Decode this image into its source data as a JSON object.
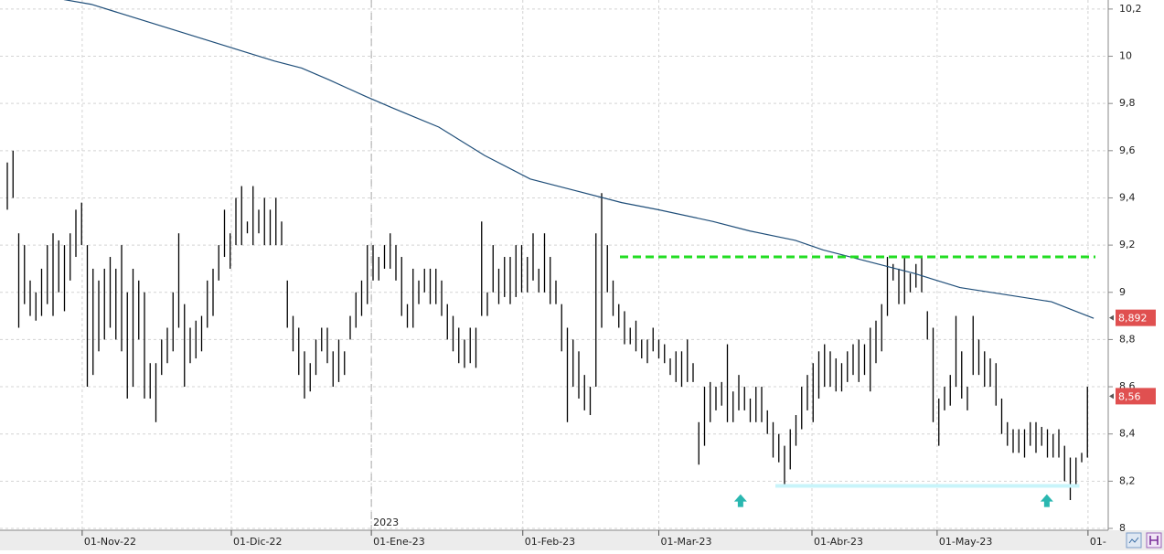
{
  "chart_data": {
    "type": "ohlc",
    "color": "#000000",
    "high": [
      9.55,
      9.6,
      9.25,
      9.2,
      9.05,
      9.0,
      9.1,
      9.2,
      9.25,
      9.22,
      9.2,
      9.25,
      9.35,
      9.38,
      9.2,
      9.1,
      9.05,
      9.1,
      9.15,
      9.1,
      9.2,
      9.0,
      9.1,
      9.05,
      9.0,
      8.7,
      8.7,
      8.8,
      8.85,
      9.0,
      9.25,
      8.95,
      8.85,
      8.88,
      8.9,
      9.05,
      9.1,
      9.2,
      9.35,
      9.25,
      9.4,
      9.45,
      9.3,
      9.45,
      9.35,
      9.4,
      9.35,
      9.4,
      9.3,
      9.05,
      8.9,
      8.85,
      8.75,
      8.7,
      8.8,
      8.85,
      8.85,
      8.75,
      8.8,
      8.75,
      8.9,
      9.0,
      9.05,
      9.2,
      9.2,
      9.15,
      9.2,
      9.25,
      9.2,
      9.15,
      8.95,
      9.1,
      9.05,
      9.1,
      9.1,
      9.1,
      9.05,
      8.95,
      8.9,
      8.85,
      8.8,
      8.85,
      8.85,
      9.3,
      9.0,
      9.2,
      9.1,
      9.15,
      9.15,
      9.2,
      9.2,
      9.15,
      9.25,
      9.1,
      9.25,
      9.15,
      9.05,
      8.95,
      8.85,
      8.8,
      8.75,
      8.65,
      8.6,
      9.25,
      9.42,
      9.2,
      9.05,
      8.95,
      8.92,
      8.85,
      8.88,
      8.8,
      8.8,
      8.85,
      8.8,
      8.78,
      8.72,
      8.75,
      8.75,
      8.8,
      8.7,
      8.45,
      8.6,
      8.62,
      8.6,
      8.62,
      8.78,
      8.58,
      8.65,
      8.6,
      8.55,
      8.6,
      8.6,
      8.5,
      8.45,
      8.4,
      8.35,
      8.42,
      8.48,
      8.6,
      8.65,
      8.7,
      8.75,
      8.78,
      8.75,
      8.72,
      8.7,
      8.75,
      8.78,
      8.8,
      8.78,
      8.85,
      8.88,
      8.95,
      9.15,
      9.12,
      9.1,
      9.15,
      9.08,
      9.12,
      9.15,
      8.92,
      8.85,
      8.55,
      8.6,
      8.65,
      8.9,
      8.75,
      8.6,
      8.9,
      8.8,
      8.75,
      8.72,
      8.7,
      8.55,
      8.45,
      8.42,
      8.42,
      8.42,
      8.45,
      8.45,
      8.43,
      8.42,
      8.4,
      8.42,
      8.35,
      8.3,
      8.3,
      8.32,
      8.6
    ],
    "low": [
      9.35,
      9.4,
      8.85,
      8.95,
      8.9,
      8.88,
      8.9,
      8.95,
      8.9,
      9.0,
      8.92,
      9.05,
      9.15,
      9.2,
      8.6,
      8.65,
      8.75,
      8.8,
      8.85,
      8.8,
      8.75,
      8.55,
      8.6,
      8.8,
      8.55,
      8.55,
      8.45,
      8.65,
      8.7,
      8.75,
      8.85,
      8.6,
      8.7,
      8.72,
      8.75,
      8.85,
      8.9,
      9.05,
      9.15,
      9.1,
      9.2,
      9.2,
      9.25,
      9.2,
      9.25,
      9.2,
      9.2,
      9.2,
      9.2,
      8.85,
      8.75,
      8.65,
      8.55,
      8.58,
      8.65,
      8.75,
      8.7,
      8.6,
      8.62,
      8.65,
      8.8,
      8.85,
      8.9,
      8.95,
      9.05,
      9.05,
      9.1,
      9.1,
      9.05,
      8.9,
      8.85,
      8.85,
      8.95,
      9.0,
      8.95,
      8.95,
      8.9,
      8.8,
      8.75,
      8.7,
      8.68,
      8.7,
      8.68,
      8.9,
      8.9,
      9.0,
      8.95,
      8.98,
      8.95,
      8.98,
      9.0,
      9.0,
      9.05,
      9.0,
      9.0,
      8.95,
      8.95,
      8.75,
      8.45,
      8.6,
      8.55,
      8.5,
      8.48,
      8.6,
      8.85,
      9.0,
      8.9,
      8.85,
      8.78,
      8.78,
      8.75,
      8.72,
      8.7,
      8.75,
      8.72,
      8.7,
      8.65,
      8.62,
      8.6,
      8.62,
      8.62,
      8.27,
      8.35,
      8.45,
      8.5,
      8.52,
      8.45,
      8.45,
      8.5,
      8.5,
      8.45,
      8.45,
      8.45,
      8.4,
      8.3,
      8.28,
      8.18,
      8.25,
      8.35,
      8.42,
      8.5,
      8.45,
      8.55,
      8.6,
      8.6,
      8.58,
      8.58,
      8.62,
      8.65,
      8.62,
      8.65,
      8.58,
      8.7,
      8.75,
      8.9,
      9.05,
      8.95,
      8.95,
      9.0,
      9.02,
      9.0,
      8.8,
      8.45,
      8.35,
      8.5,
      8.52,
      8.6,
      8.55,
      8.5,
      8.65,
      8.65,
      8.6,
      8.6,
      8.52,
      8.4,
      8.35,
      8.32,
      8.32,
      8.3,
      8.35,
      8.32,
      8.35,
      8.3,
      8.3,
      8.3,
      8.2,
      8.12,
      8.18,
      8.28,
      8.3
    ],
    "moving_average": {
      "color": "#1f4e79",
      "x": [
        9.9,
        14.7,
        30.7,
        38.7,
        46.7,
        51.5,
        56.3,
        62.7,
        67.5,
        75.5,
        83.5,
        91.5,
        99.5,
        107.5,
        113.9,
        123.5,
        129.9,
        137.9,
        142.7,
        150.7,
        158.7,
        166.7,
        174.7,
        182.7,
        190.1
      ],
      "values": [
        10.24,
        10.22,
        10.1,
        10.04,
        9.98,
        9.95,
        9.9,
        9.83,
        9.78,
        9.7,
        9.58,
        9.48,
        9.43,
        9.38,
        9.35,
        9.3,
        9.26,
        9.22,
        9.18,
        9.13,
        9.08,
        9.02,
        8.99,
        8.96,
        8.89
      ]
    },
    "levels": [
      {
        "value": 9.15,
        "start": 107.2,
        "end": 190.4,
        "color": "#22dd22",
        "style": "dashed"
      },
      {
        "value": 8.18,
        "start": 134.4,
        "end": 187.6,
        "color": "#c8f4fa",
        "style": "solid"
      }
    ],
    "arrows": {
      "color": "#2ab7b0",
      "x": [
        128.3,
        181.9
      ],
      "values": [
        8.11,
        8.11
      ]
    },
    "price_labels": [
      {
        "value": 8.892,
        "label": "8,892"
      },
      {
        "value": 8.56,
        "label": "8,56"
      }
    ],
    "price_label_color": "#e05050",
    "year_marker": {
      "x": 63.7,
      "label": "2023"
    },
    "xlim": [
      -1.28,
      192.64
    ],
    "xticks": [
      {
        "value": 13.1,
        "label": "01-Nov-22"
      },
      {
        "value": 39.2,
        "label": "01-Dic-22"
      },
      {
        "value": 63.7,
        "label": "01-Ene-23"
      },
      {
        "value": 90.2,
        "label": "01-Feb-23"
      },
      {
        "value": 114,
        "label": "01-Mar-23"
      },
      {
        "value": 140.8,
        "label": "01-Abr-23"
      },
      {
        "value": 162.7,
        "label": "01-May-23"
      },
      {
        "value": 189.1,
        "label": "01-"
      }
    ],
    "ylim": [
      7.9922,
      10.2383
    ],
    "yticks": [
      8,
      {
        "value": 8.2,
        "label": "8,2"
      },
      {
        "value": 8.4,
        "label": "8,4"
      },
      {
        "value": 8.6,
        "label": "8,6"
      },
      {
        "value": 8.8,
        "label": "8,8"
      },
      9,
      {
        "value": 9.2,
        "label": "9,2"
      },
      {
        "value": 9.4,
        "label": "9,4"
      },
      {
        "value": 9.6,
        "label": "9,6"
      },
      {
        "value": 9.8,
        "label": "9,8"
      },
      10,
      {
        "value": 10.2,
        "label": "10,2"
      }
    ],
    "grid": true
  }
}
